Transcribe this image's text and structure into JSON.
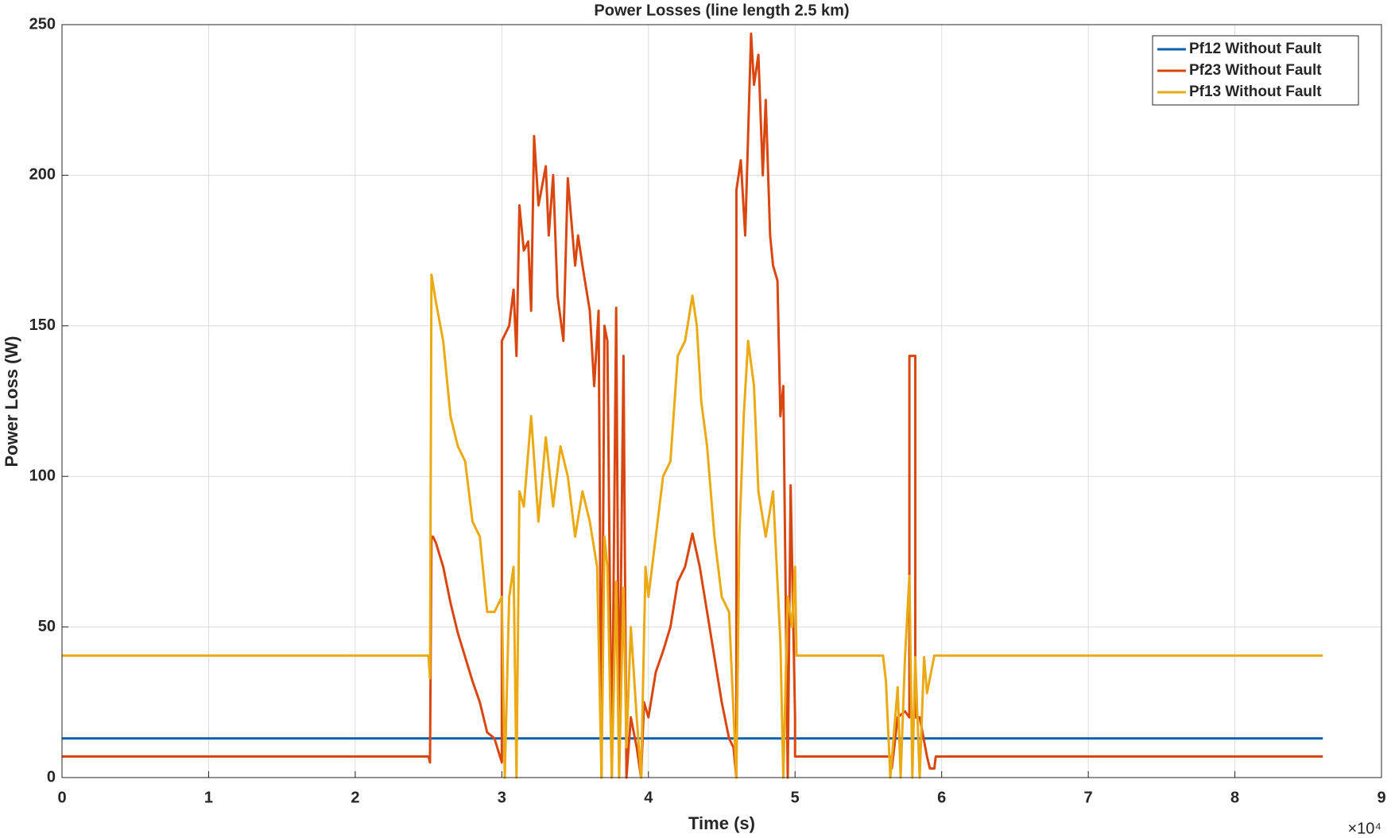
{
  "chart_data": {
    "type": "line",
    "title": "Power Losses (line length 2.5 km)",
    "x_label": "Time (s)",
    "y_label": "Power Loss (W)",
    "x_multiplier": "×10⁴",
    "xlim": [
      0,
      9
    ],
    "xticks": [
      0,
      1,
      2,
      3,
      4,
      5,
      6,
      7,
      8,
      9
    ],
    "ylim": [
      0,
      250
    ],
    "yticks": [
      0,
      50,
      100,
      150,
      200,
      250
    ],
    "grid": true,
    "legend": "upper right",
    "series": [
      {
        "name": "Pf12 Without Fault",
        "color": "#0b5fad",
        "x": [
          0,
          2.5,
          5,
          8.6
        ],
        "values": [
          13,
          13,
          13,
          13
        ]
      },
      {
        "name": "Pf23 Without Fault",
        "color": "#d9460f",
        "x": [
          0,
          2.5,
          2.51,
          2.52,
          2.53,
          2.55,
          2.6,
          2.65,
          2.7,
          2.75,
          2.8,
          2.85,
          2.9,
          2.95,
          3.0,
          3.0,
          3.05,
          3.08,
          3.1,
          3.12,
          3.15,
          3.18,
          3.2,
          3.22,
          3.25,
          3.3,
          3.32,
          3.35,
          3.38,
          3.42,
          3.45,
          3.5,
          3.52,
          3.55,
          3.6,
          3.63,
          3.66,
          3.68,
          3.7,
          3.72,
          3.75,
          3.78,
          3.8,
          3.83,
          3.85,
          3.88,
          3.92,
          3.95,
          3.97,
          4.0,
          4.05,
          4.1,
          4.15,
          4.2,
          4.25,
          4.3,
          4.35,
          4.4,
          4.45,
          4.5,
          4.55,
          4.58,
          4.6,
          4.6,
          4.63,
          4.66,
          4.7,
          4.72,
          4.75,
          4.78,
          4.8,
          4.83,
          4.85,
          4.88,
          4.9,
          4.92,
          4.95,
          4.97,
          5.0,
          5.0,
          5.6,
          5.65,
          5.66,
          5.7,
          5.75,
          5.78,
          5.78,
          5.82,
          5.82,
          5.85,
          5.9,
          5.92,
          5.95,
          5.96,
          8.6
        ],
        "values": [
          7,
          7,
          5,
          80,
          80,
          78,
          70,
          58,
          48,
          40,
          32,
          25,
          15,
          13,
          5,
          145,
          150,
          162,
          140,
          190,
          175,
          178,
          155,
          213,
          190,
          203,
          180,
          200,
          160,
          145,
          199,
          170,
          180,
          170,
          155,
          130,
          155,
          0,
          150,
          145,
          0,
          156,
          10,
          140,
          0,
          20,
          10,
          0,
          25,
          20,
          35,
          42,
          50,
          65,
          70,
          81,
          70,
          55,
          40,
          25,
          13,
          10,
          0,
          195,
          205,
          180,
          247,
          230,
          240,
          200,
          225,
          180,
          170,
          165,
          120,
          130,
          0,
          97,
          20,
          7,
          7,
          7,
          3,
          20,
          22,
          20,
          140,
          140,
          20,
          20,
          7,
          3,
          3,
          7,
          7
        ]
      },
      {
        "name": "Pf13 Without Fault",
        "color": "#ebaa14",
        "x": [
          0,
          2.5,
          2.51,
          2.52,
          2.55,
          2.6,
          2.65,
          2.7,
          2.75,
          2.8,
          2.85,
          2.9,
          2.95,
          3.0,
          3.02,
          3.05,
          3.08,
          3.1,
          3.12,
          3.15,
          3.2,
          3.25,
          3.3,
          3.35,
          3.4,
          3.45,
          3.5,
          3.55,
          3.6,
          3.65,
          3.68,
          3.7,
          3.72,
          3.75,
          3.78,
          3.8,
          3.83,
          3.85,
          3.88,
          3.92,
          3.95,
          3.98,
          4.0,
          4.05,
          4.1,
          4.15,
          4.2,
          4.25,
          4.3,
          4.33,
          4.36,
          4.4,
          4.45,
          4.5,
          4.55,
          4.6,
          4.62,
          4.65,
          4.68,
          4.72,
          4.75,
          4.8,
          4.85,
          4.9,
          4.92,
          4.95,
          4.98,
          5.0,
          5.01,
          5.6,
          5.62,
          5.65,
          5.7,
          5.72,
          5.75,
          5.78,
          5.8,
          5.82,
          5.85,
          5.88,
          5.9,
          5.95,
          8.6
        ],
        "values": [
          40.5,
          40.5,
          33,
          167,
          158,
          145,
          120,
          110,
          105,
          85,
          80,
          55,
          55,
          60,
          0,
          60,
          70,
          0,
          95,
          90,
          120,
          85,
          113,
          90,
          110,
          100,
          80,
          95,
          85,
          70,
          0,
          80,
          70,
          0,
          65,
          0,
          63,
          10,
          50,
          20,
          0,
          70,
          60,
          80,
          100,
          105,
          140,
          145,
          160,
          150,
          125,
          110,
          80,
          60,
          55,
          0,
          80,
          120,
          145,
          130,
          95,
          80,
          95,
          45,
          0,
          60,
          50,
          70,
          40.5,
          40.5,
          32,
          0,
          30,
          0,
          40,
          67,
          0,
          40,
          0,
          40,
          28,
          40.5,
          40.5
        ]
      }
    ]
  }
}
